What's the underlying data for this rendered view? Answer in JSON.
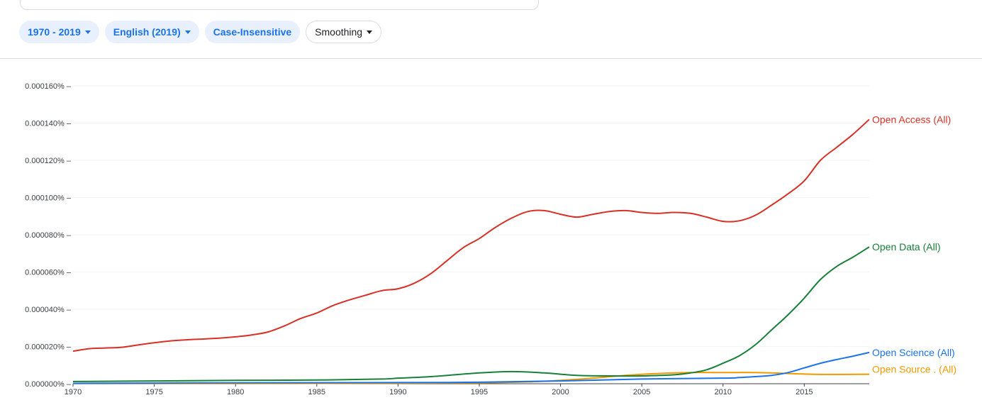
{
  "filters": {
    "years": "1970 - 2019",
    "corpus": "English (2019)",
    "case": "Case-Insensitive",
    "smoothing": "Smoothing",
    "colors": {
      "chip_bg": "#e8f0fe",
      "chip_text": "#1a73e8"
    }
  },
  "chart_data": {
    "type": "line",
    "xlim": [
      1970,
      2019
    ],
    "ylim": [
      0,
      0.00016
    ],
    "grid": true,
    "y_ticks": [
      "0.000000%",
      "0.000020%",
      "0.000040%",
      "0.000060%",
      "0.000080%",
      "0.000100%",
      "0.000120%",
      "0.000140%",
      "0.000160%"
    ],
    "x_ticks": [
      "1970",
      "1975",
      "1980",
      "1985",
      "1990",
      "1995",
      "2000",
      "2005",
      "2010",
      "2015"
    ],
    "series": [
      {
        "name": "Open Access (All)",
        "color": "#d93025",
        "x": [
          1970,
          1971,
          1972,
          1973,
          1974,
          1975,
          1976,
          1977,
          1978,
          1979,
          1980,
          1981,
          1982,
          1983,
          1984,
          1985,
          1986,
          1987,
          1988,
          1989,
          1990,
          1991,
          1992,
          1993,
          1994,
          1995,
          1996,
          1997,
          1998,
          1999,
          2000,
          2001,
          2002,
          2003,
          2004,
          2005,
          2006,
          2007,
          2008,
          2009,
          2010,
          2011,
          2012,
          2013,
          2014,
          2015,
          2016,
          2017,
          2018,
          2019
        ],
        "y": [
          1.75e-05,
          1.88e-05,
          1.92e-05,
          1.96e-05,
          2.08e-05,
          2.2e-05,
          2.3e-05,
          2.36e-05,
          2.4e-05,
          2.45e-05,
          2.52e-05,
          2.62e-05,
          2.78e-05,
          3.1e-05,
          3.5e-05,
          3.8e-05,
          4.2e-05,
          4.5e-05,
          4.75e-05,
          5e-05,
          5.1e-05,
          5.4e-05,
          5.9e-05,
          6.6e-05,
          7.3e-05,
          7.8e-05,
          8.4e-05,
          8.9e-05,
          9.25e-05,
          9.3e-05,
          9.1e-05,
          8.95e-05,
          9.1e-05,
          9.25e-05,
          9.3e-05,
          9.2e-05,
          9.15e-05,
          9.2e-05,
          9.15e-05,
          8.95e-05,
          8.72e-05,
          8.75e-05,
          9.05e-05,
          9.6e-05,
          0.000102,
          0.000109,
          0.00012,
          0.000127,
          0.000134,
          0.000142
        ]
      },
      {
        "name": "Open Data (All)",
        "color": "#188038",
        "x": [
          1970,
          1975,
          1980,
          1985,
          1989,
          1990,
          1992,
          1995,
          1997,
          1999,
          2001,
          2003,
          2005,
          2007,
          2008,
          2009,
          2010,
          2011,
          2012,
          2013,
          2014,
          2015,
          2016,
          2017,
          2018,
          2019
        ],
        "y": [
          1.2e-06,
          1.5e-06,
          1.8e-06,
          2e-06,
          2.5e-06,
          3e-06,
          3.8e-06,
          5.8e-06,
          6.5e-06,
          5.8e-06,
          4.5e-06,
          4.2e-06,
          4.2e-06,
          4.8e-06,
          5.8e-06,
          7.5e-06,
          1.1e-05,
          1.5e-05,
          2.1e-05,
          2.9e-05,
          3.7e-05,
          4.6e-05,
          5.6e-05,
          6.3e-05,
          6.8e-05,
          7.35e-05
        ]
      },
      {
        "name": "Open Science (All)",
        "color": "#1a73e8",
        "x": [
          1970,
          1980,
          1990,
          1995,
          2000,
          2005,
          2010,
          2011,
          2012,
          2013,
          2014,
          2015,
          2016,
          2017,
          2018,
          2019
        ],
        "y": [
          2e-07,
          5e-07,
          6e-07,
          8e-07,
          1.5e-06,
          2.5e-06,
          3e-06,
          3.3e-06,
          3.8e-06,
          4.5e-06,
          6e-06,
          8.5e-06,
          1.1e-05,
          1.3e-05,
          1.48e-05,
          1.68e-05
        ]
      },
      {
        "name": "Open Source . (All)",
        "color": "#f29900",
        "x": [
          1970,
          1980,
          1990,
          1995,
          1998,
          2000,
          2002,
          2004,
          2006,
          2008,
          2010,
          2012,
          2014,
          2016,
          2019
        ],
        "y": [
          1e-07,
          1e-07,
          3e-07,
          5e-07,
          1e-06,
          1.8e-06,
          3e-06,
          4.5e-06,
          5.5e-06,
          6e-06,
          6e-06,
          6e-06,
          5.5e-06,
          5e-06,
          5.1e-06
        ]
      }
    ]
  }
}
